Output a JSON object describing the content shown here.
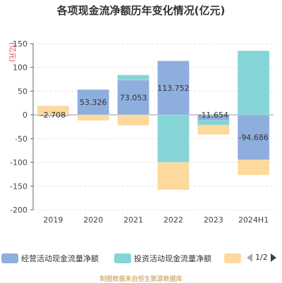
{
  "chart_data": {
    "type": "bar",
    "stacked": true,
    "title": "各项现金流净额历年变化情况(亿元)",
    "ylabel": "(亿元)",
    "categories": [
      "2019",
      "2020",
      "2021",
      "2022",
      "2023",
      "2024H1"
    ],
    "ylim": [
      -200,
      150
    ],
    "yticks": [
      150,
      100,
      50,
      0,
      -50,
      -100,
      -150,
      -200
    ],
    "grid": true,
    "series": [
      {
        "name": "经营活动现金流量净额",
        "color": "#8eaedd",
        "values": [
          -2.708,
          53.326,
          73.053,
          113.752,
          -11.654,
          -94.686
        ]
      },
      {
        "name": "投资活动现金流量净额",
        "color": "#85d5d7",
        "values": [
          0,
          0,
          11,
          -100,
          -10,
          135
        ]
      },
      {
        "name": "筹资活动现金流量净额",
        "color": "#fed99d",
        "values": [
          19,
          -12,
          -22,
          -58,
          -20,
          -32
        ]
      }
    ],
    "data_labels": [
      "-2.708",
      "53.326",
      "73.053",
      "113.752",
      "-11.654",
      "-94.686"
    ],
    "legend": {
      "position": "bottom",
      "page": "1/2"
    }
  },
  "source": "制图数据来自恒生聚源数据库"
}
